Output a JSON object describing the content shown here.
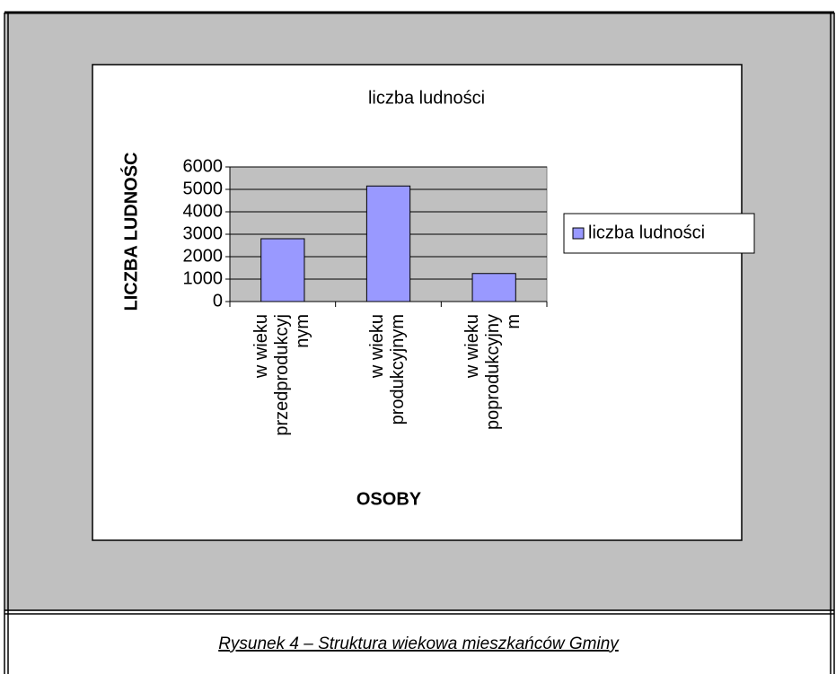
{
  "chart_data": {
    "type": "bar",
    "title": "liczba ludności",
    "x_label": "OSOBY",
    "y_label": "LICZBA LUDNOŚC",
    "categories": [
      "w wieku przedprodukcyjnym",
      "w wieku produkcyjnym",
      "w wieku poprodukcyjnym"
    ],
    "series": [
      {
        "name": "liczba ludności",
        "color": "#9999ff",
        "values": [
          2800,
          5150,
          1250
        ]
      }
    ],
    "ylim": [
      0,
      6000
    ],
    "yticks": [
      0,
      1000,
      2000,
      3000,
      4000,
      5000,
      6000
    ],
    "grid": true,
    "legend": "right"
  },
  "caption": "Rysunek 4 – Struktura wiekowa mieszkańców Gminy"
}
